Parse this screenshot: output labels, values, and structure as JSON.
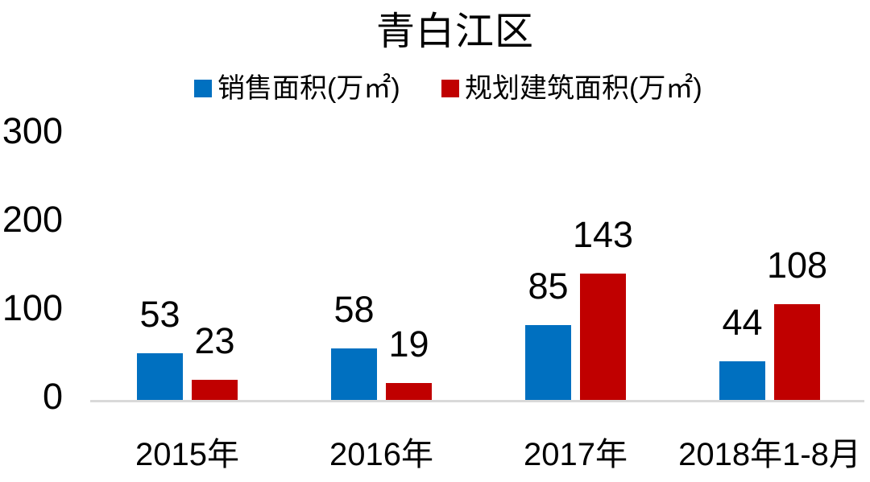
{
  "title": "青白江区",
  "legend": [
    {
      "label": "销售面积(万㎡)",
      "color": "#0070C0"
    },
    {
      "label": "规划建筑面积(万㎡)",
      "color": "#C00000"
    }
  ],
  "chart_data": {
    "type": "bar",
    "title": "青白江区",
    "categories": [
      "2015年",
      "2016年",
      "2017年",
      "2018年1-8月"
    ],
    "series": [
      {
        "name": "销售面积(万㎡)",
        "color": "#0070C0",
        "values": [
          53,
          58,
          85,
          44
        ]
      },
      {
        "name": "规划建筑面积(万㎡)",
        "color": "#C00000",
        "values": [
          23,
          19,
          143,
          108
        ]
      }
    ],
    "ylim": [
      0,
      300
    ],
    "yticks": [
      0,
      100,
      200,
      300
    ],
    "grid": false,
    "legend_position": "top",
    "data_labels": true,
    "xlabel": "",
    "ylabel": ""
  },
  "colors": {
    "axis_line": "#D9D9D9",
    "text": "#000000",
    "background": "#FFFFFF"
  }
}
